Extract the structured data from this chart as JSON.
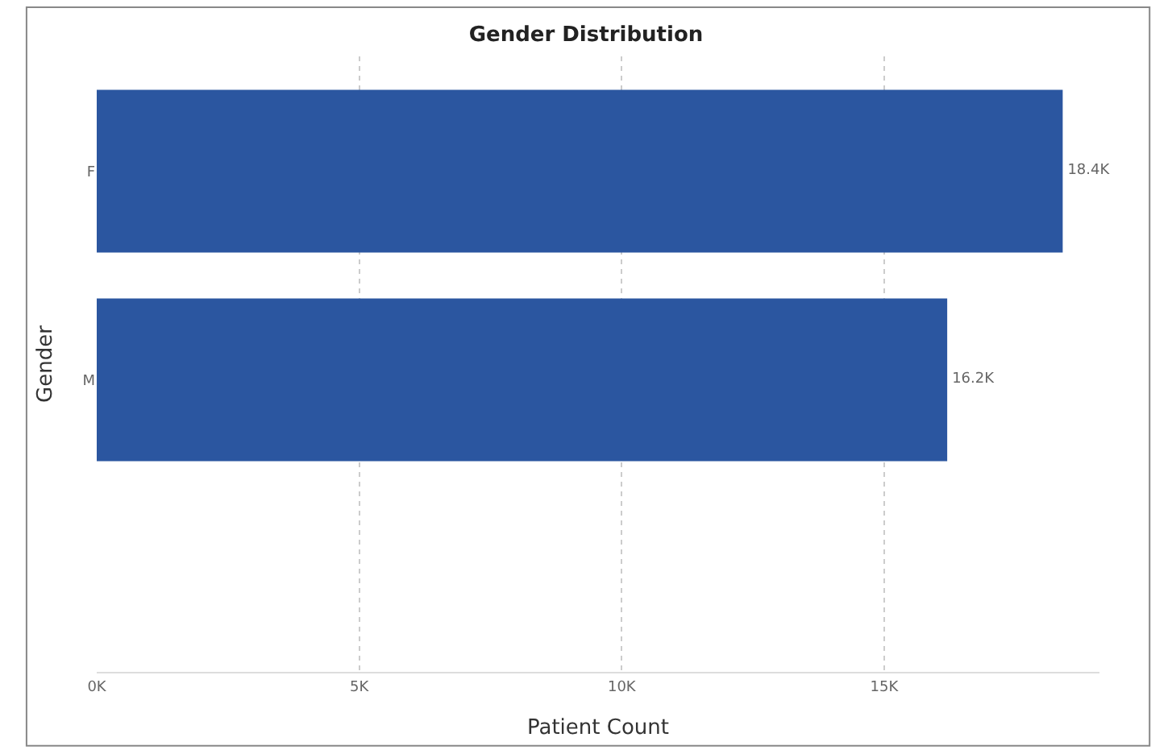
{
  "chart_data": {
    "type": "bar",
    "orientation": "horizontal",
    "title": "Gender Distribution",
    "xlabel": "Patient Count",
    "ylabel": "Gender",
    "categories": [
      "F",
      "M"
    ],
    "series": [
      {
        "color": "#2b56a0",
        "values": [
          18400,
          16200
        ],
        "value_labels": [
          "18.4K",
          "16.2K"
        ]
      }
    ],
    "xlim": [
      0,
      19100
    ],
    "xticks": [
      {
        "value": 0,
        "label": "0K"
      },
      {
        "value": 5000,
        "label": "5K"
      },
      {
        "value": 10000,
        "label": "10K"
      },
      {
        "value": 15000,
        "label": "15K"
      }
    ],
    "grid": "x",
    "legend": false
  }
}
